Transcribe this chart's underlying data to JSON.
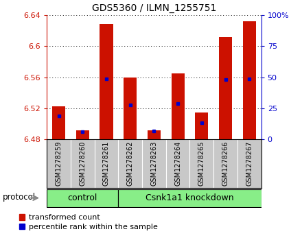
{
  "title": "GDS5360 / ILMN_1255751",
  "samples": [
    "GSM1278259",
    "GSM1278260",
    "GSM1278261",
    "GSM1278262",
    "GSM1278263",
    "GSM1278264",
    "GSM1278265",
    "GSM1278266",
    "GSM1278267"
  ],
  "bar_tops": [
    6.523,
    6.492,
    6.628,
    6.56,
    6.492,
    6.565,
    6.515,
    6.612,
    6.632
  ],
  "base_value": 6.48,
  "blue_positions": [
    6.51,
    6.49,
    6.558,
    6.524,
    6.491,
    6.526,
    6.501,
    6.557,
    6.558
  ],
  "ylim_left": [
    6.48,
    6.64
  ],
  "yticks_left": [
    6.48,
    6.52,
    6.56,
    6.6,
    6.64
  ],
  "yticks_right": [
    0,
    25,
    50,
    75,
    100
  ],
  "bar_color": "#cc1100",
  "blue_color": "#0000cc",
  "n_control": 3,
  "control_label": "control",
  "knockdown_label": "Csnk1a1 knockdown",
  "protocol_label": "protocol",
  "legend1": "transformed count",
  "legend2": "percentile rank within the sample",
  "group_color": "#88ee88",
  "xticklabel_bg": "#c8c8c8",
  "plot_bg": "#ffffff",
  "grid_color": "#000000"
}
